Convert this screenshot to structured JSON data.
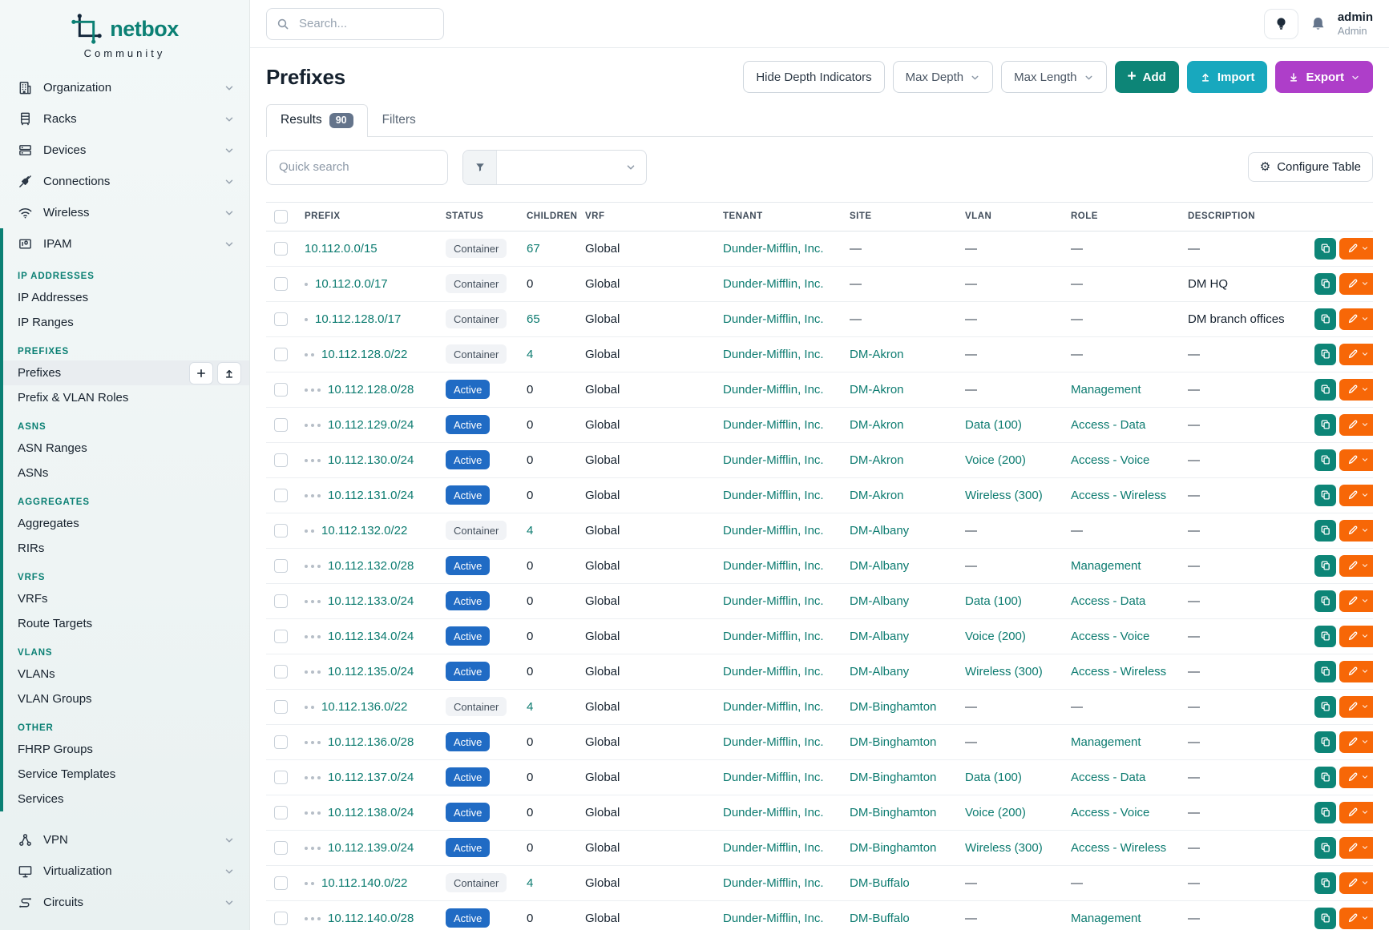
{
  "brand": {
    "name": "netbox",
    "subtitle": "Community"
  },
  "topbar": {
    "search_placeholder": "Search...",
    "user": {
      "name": "admin",
      "role": "Admin"
    }
  },
  "page": {
    "title": "Prefixes",
    "actions": {
      "hide_depth": "Hide Depth Indicators",
      "max_depth": "Max Depth",
      "max_length": "Max Length",
      "add": "Add",
      "import": "Import",
      "export": "Export"
    },
    "tabs": [
      {
        "label": "Results",
        "badge": "90",
        "active": true
      },
      {
        "label": "Filters",
        "active": false
      }
    ],
    "quick_search_placeholder": "Quick search",
    "configure_table": "Configure Table"
  },
  "sidebar": {
    "top_items": [
      {
        "label": "Organization",
        "icon": "building-icon"
      },
      {
        "label": "Racks",
        "icon": "rack-icon"
      },
      {
        "label": "Devices",
        "icon": "server-icon"
      },
      {
        "label": "Connections",
        "icon": "plug-icon"
      },
      {
        "label": "Wireless",
        "icon": "wifi-icon"
      }
    ],
    "ipam": {
      "label": "IPAM",
      "icon": "ipam-icon",
      "sections": [
        {
          "title": "IP ADDRESSES",
          "items": [
            "IP Addresses",
            "IP Ranges"
          ]
        },
        {
          "title": "PREFIXES",
          "items": [
            "Prefixes",
            "Prefix & VLAN Roles"
          ],
          "active_item": "Prefixes"
        },
        {
          "title": "ASNS",
          "items": [
            "ASN Ranges",
            "ASNs"
          ]
        },
        {
          "title": "AGGREGATES",
          "items": [
            "Aggregates",
            "RIRs"
          ]
        },
        {
          "title": "VRFS",
          "items": [
            "VRFs",
            "Route Targets"
          ]
        },
        {
          "title": "VLANS",
          "items": [
            "VLANs",
            "VLAN Groups"
          ]
        },
        {
          "title": "OTHER",
          "items": [
            "FHRP Groups",
            "Service Templates",
            "Services"
          ]
        }
      ]
    },
    "bottom_items": [
      {
        "label": "VPN",
        "icon": "vpn-icon"
      },
      {
        "label": "Virtualization",
        "icon": "monitor-icon"
      },
      {
        "label": "Circuits",
        "icon": "circuit-icon"
      }
    ]
  },
  "table": {
    "columns": [
      "PREFIX",
      "STATUS",
      "CHILDREN",
      "VRF",
      "TENANT",
      "SITE",
      "VLAN",
      "ROLE",
      "DESCRIPTION"
    ],
    "rows": [
      {
        "prefix": "10.112.0.0/15",
        "depth": 0,
        "status": "Container",
        "children": "67",
        "vrf": "Global",
        "tenant": "Dunder-Mifflin, Inc.",
        "site": "—",
        "vlan": "—",
        "role": "—",
        "description": "—"
      },
      {
        "prefix": "10.112.0.0/17",
        "depth": 1,
        "status": "Container",
        "children": "0",
        "vrf": "Global",
        "tenant": "Dunder-Mifflin, Inc.",
        "site": "—",
        "vlan": "—",
        "role": "—",
        "description": "DM HQ"
      },
      {
        "prefix": "10.112.128.0/17",
        "depth": 1,
        "status": "Container",
        "children": "65",
        "vrf": "Global",
        "tenant": "Dunder-Mifflin, Inc.",
        "site": "—",
        "vlan": "—",
        "role": "—",
        "description": "DM branch offices"
      },
      {
        "prefix": "10.112.128.0/22",
        "depth": 2,
        "status": "Container",
        "children": "4",
        "vrf": "Global",
        "tenant": "Dunder-Mifflin, Inc.",
        "site": "DM-Akron",
        "vlan": "—",
        "role": "—",
        "description": "—"
      },
      {
        "prefix": "10.112.128.0/28",
        "depth": 3,
        "status": "Active",
        "children": "0",
        "vrf": "Global",
        "tenant": "Dunder-Mifflin, Inc.",
        "site": "DM-Akron",
        "vlan": "—",
        "role": "Management",
        "description": "—"
      },
      {
        "prefix": "10.112.129.0/24",
        "depth": 3,
        "status": "Active",
        "children": "0",
        "vrf": "Global",
        "tenant": "Dunder-Mifflin, Inc.",
        "site": "DM-Akron",
        "vlan": "Data (100)",
        "role": "Access - Data",
        "description": "—"
      },
      {
        "prefix": "10.112.130.0/24",
        "depth": 3,
        "status": "Active",
        "children": "0",
        "vrf": "Global",
        "tenant": "Dunder-Mifflin, Inc.",
        "site": "DM-Akron",
        "vlan": "Voice (200)",
        "role": "Access - Voice",
        "description": "—"
      },
      {
        "prefix": "10.112.131.0/24",
        "depth": 3,
        "status": "Active",
        "children": "0",
        "vrf": "Global",
        "tenant": "Dunder-Mifflin, Inc.",
        "site": "DM-Akron",
        "vlan": "Wireless (300)",
        "role": "Access - Wireless",
        "description": "—"
      },
      {
        "prefix": "10.112.132.0/22",
        "depth": 2,
        "status": "Container",
        "children": "4",
        "vrf": "Global",
        "tenant": "Dunder-Mifflin, Inc.",
        "site": "DM-Albany",
        "vlan": "—",
        "role": "—",
        "description": "—"
      },
      {
        "prefix": "10.112.132.0/28",
        "depth": 3,
        "status": "Active",
        "children": "0",
        "vrf": "Global",
        "tenant": "Dunder-Mifflin, Inc.",
        "site": "DM-Albany",
        "vlan": "—",
        "role": "Management",
        "description": "—"
      },
      {
        "prefix": "10.112.133.0/24",
        "depth": 3,
        "status": "Active",
        "children": "0",
        "vrf": "Global",
        "tenant": "Dunder-Mifflin, Inc.",
        "site": "DM-Albany",
        "vlan": "Data (100)",
        "role": "Access - Data",
        "description": "—"
      },
      {
        "prefix": "10.112.134.0/24",
        "depth": 3,
        "status": "Active",
        "children": "0",
        "vrf": "Global",
        "tenant": "Dunder-Mifflin, Inc.",
        "site": "DM-Albany",
        "vlan": "Voice (200)",
        "role": "Access - Voice",
        "description": "—"
      },
      {
        "prefix": "10.112.135.0/24",
        "depth": 3,
        "status": "Active",
        "children": "0",
        "vrf": "Global",
        "tenant": "Dunder-Mifflin, Inc.",
        "site": "DM-Albany",
        "vlan": "Wireless (300)",
        "role": "Access - Wireless",
        "description": "—"
      },
      {
        "prefix": "10.112.136.0/22",
        "depth": 2,
        "status": "Container",
        "children": "4",
        "vrf": "Global",
        "tenant": "Dunder-Mifflin, Inc.",
        "site": "DM-Binghamton",
        "vlan": "—",
        "role": "—",
        "description": "—"
      },
      {
        "prefix": "10.112.136.0/28",
        "depth": 3,
        "status": "Active",
        "children": "0",
        "vrf": "Global",
        "tenant": "Dunder-Mifflin, Inc.",
        "site": "DM-Binghamton",
        "vlan": "—",
        "role": "Management",
        "description": "—"
      },
      {
        "prefix": "10.112.137.0/24",
        "depth": 3,
        "status": "Active",
        "children": "0",
        "vrf": "Global",
        "tenant": "Dunder-Mifflin, Inc.",
        "site": "DM-Binghamton",
        "vlan": "Data (100)",
        "role": "Access - Data",
        "description": "—"
      },
      {
        "prefix": "10.112.138.0/24",
        "depth": 3,
        "status": "Active",
        "children": "0",
        "vrf": "Global",
        "tenant": "Dunder-Mifflin, Inc.",
        "site": "DM-Binghamton",
        "vlan": "Voice (200)",
        "role": "Access - Voice",
        "description": "—"
      },
      {
        "prefix": "10.112.139.0/24",
        "depth": 3,
        "status": "Active",
        "children": "0",
        "vrf": "Global",
        "tenant": "Dunder-Mifflin, Inc.",
        "site": "DM-Binghamton",
        "vlan": "Wireless (300)",
        "role": "Access - Wireless",
        "description": "—"
      },
      {
        "prefix": "10.112.140.0/22",
        "depth": 2,
        "status": "Container",
        "children": "4",
        "vrf": "Global",
        "tenant": "Dunder-Mifflin, Inc.",
        "site": "DM-Buffalo",
        "vlan": "—",
        "role": "—",
        "description": "—"
      },
      {
        "prefix": "10.112.140.0/28",
        "depth": 3,
        "status": "Active",
        "children": "0",
        "vrf": "Global",
        "tenant": "Dunder-Mifflin, Inc.",
        "site": "DM-Buffalo",
        "vlan": "—",
        "role": "Management",
        "description": "—"
      }
    ]
  },
  "colors": {
    "accent_teal": "#0b8074",
    "link_teal": "#0c7b70",
    "active_badge_blue": "#206bc4",
    "container_badge_bg": "#f1f3f6",
    "add_button": "#0d8577",
    "import_button": "#18a8be",
    "export_button": "#ae3ec9",
    "edit_button": "#f76707"
  }
}
